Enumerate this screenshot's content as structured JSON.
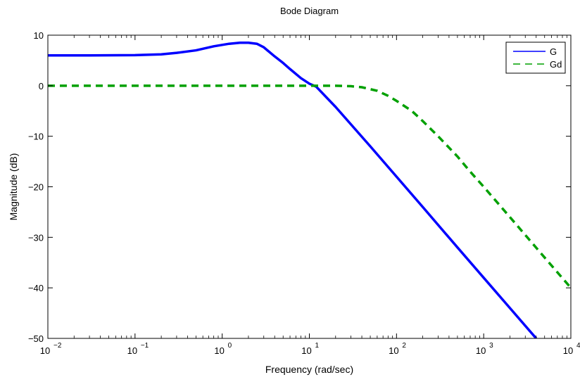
{
  "chart_data": {
    "type": "line",
    "title": "Bode Diagram",
    "xlabel": "Frequency  (rad/sec)",
    "ylabel": "Magnitude (dB)",
    "x_scale": "log",
    "xlim": [
      0.01,
      10000
    ],
    "ylim": [
      -50,
      10
    ],
    "grid": false,
    "legend_position": "top-right",
    "x_ticks": [
      {
        "base": "10",
        "exp": "−2",
        "value": 0.01
      },
      {
        "base": "10",
        "exp": "−1",
        "value": 0.1
      },
      {
        "base": "10",
        "exp": "0",
        "value": 1
      },
      {
        "base": "10",
        "exp": "1",
        "value": 10
      },
      {
        "base": "10",
        "exp": "2",
        "value": 100
      },
      {
        "base": "10",
        "exp": "3",
        "value": 1000
      },
      {
        "base": "10",
        "exp": "4",
        "value": 10000
      }
    ],
    "y_ticks": [
      {
        "label": "10",
        "value": 10
      },
      {
        "label": "0",
        "value": 0
      },
      {
        "label": "−10",
        "value": -10
      },
      {
        "label": "−20",
        "value": -20
      },
      {
        "label": "−30",
        "value": -30
      },
      {
        "label": "−40",
        "value": -40
      },
      {
        "label": "−50",
        "value": -50
      }
    ],
    "series": [
      {
        "name": "G",
        "color": "#0000ff",
        "style": "solid",
        "points": [
          [
            0.01,
            6.0
          ],
          [
            0.03,
            6.0
          ],
          [
            0.1,
            6.05
          ],
          [
            0.2,
            6.2
          ],
          [
            0.3,
            6.5
          ],
          [
            0.5,
            7.0
          ],
          [
            0.8,
            7.8
          ],
          [
            1.2,
            8.3
          ],
          [
            1.6,
            8.5
          ],
          [
            2.0,
            8.5
          ],
          [
            2.5,
            8.3
          ],
          [
            3.0,
            7.6
          ],
          [
            4.0,
            5.8
          ],
          [
            5.0,
            4.5
          ],
          [
            6.0,
            3.3
          ],
          [
            8.0,
            1.5
          ],
          [
            10.0,
            0.4
          ],
          [
            12.0,
            -0.2
          ],
          [
            20.0,
            -4.2
          ],
          [
            50.0,
            -12.0
          ],
          [
            100.0,
            -18.0
          ],
          [
            200.0,
            -24.0
          ],
          [
            500.0,
            -32.0
          ],
          [
            1000.0,
            -38.0
          ],
          [
            2000.0,
            -44.0
          ],
          [
            4000.0,
            -50.0
          ]
        ]
      },
      {
        "name": "Gd",
        "color": "#00a000",
        "style": "dashed",
        "points": [
          [
            0.01,
            0.0
          ],
          [
            0.1,
            0.0
          ],
          [
            1.0,
            0.0
          ],
          [
            10.0,
            0.0
          ],
          [
            20.0,
            0.0
          ],
          [
            30.0,
            -0.1
          ],
          [
            40.0,
            -0.3
          ],
          [
            60.0,
            -1.0
          ],
          [
            80.0,
            -2.0
          ],
          [
            100.0,
            -3.0
          ],
          [
            150.0,
            -5.0
          ],
          [
            200.0,
            -7.0
          ],
          [
            300.0,
            -10.0
          ],
          [
            500.0,
            -14.0
          ],
          [
            700.0,
            -17.0
          ],
          [
            1000.0,
            -20.0
          ],
          [
            2000.0,
            -26.0
          ],
          [
            5000.0,
            -34.0
          ],
          [
            10000.0,
            -40.0
          ]
        ]
      }
    ]
  }
}
